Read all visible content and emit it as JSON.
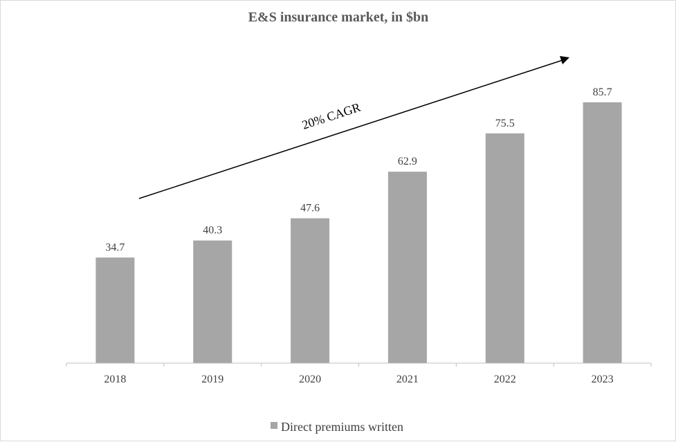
{
  "chart_data": {
    "type": "bar",
    "title": "E&S insurance market, in $bn",
    "categories": [
      "2018",
      "2019",
      "2020",
      "2021",
      "2022",
      "2023"
    ],
    "series": [
      {
        "name": "Direct premiums written",
        "values": [
          34.7,
          40.3,
          47.6,
          62.9,
          75.5,
          85.7
        ]
      }
    ],
    "data_labels": [
      "34.7",
      "40.3",
      "47.6",
      "62.9",
      "75.5",
      "85.7"
    ],
    "annotation": "20% CAGR",
    "xlabel": "",
    "ylabel": "",
    "ylim": [
      0,
      100
    ],
    "grid": false,
    "legend_position": "bottom",
    "colors": {
      "bar": "#a6a6a6",
      "axis": "#bfbfbf",
      "text": "#404040",
      "title": "#595959",
      "arrow": "#000000"
    }
  }
}
